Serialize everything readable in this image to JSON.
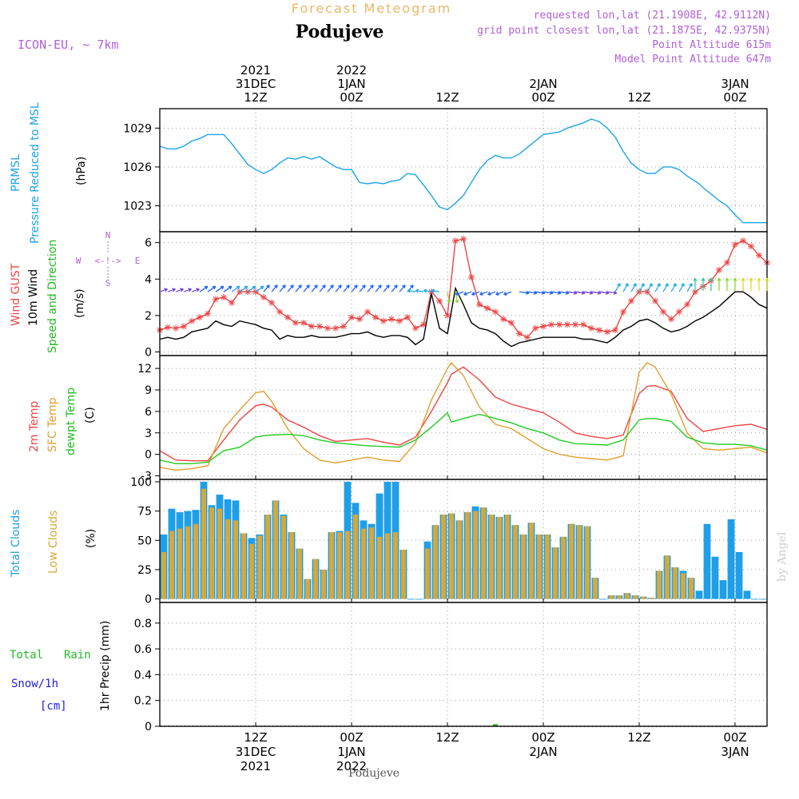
{
  "header": {
    "forecast_label": "Forecast Meteogram",
    "station": "Podujeve",
    "model": "ICON-EU, ~ 7km",
    "requested": "requested lon,lat (21.1908E, 42.9112N)",
    "grid_point": "grid point closest lon,lat (21.1875E, 42.9375N)",
    "point_alt": "Point Altitude 615m",
    "model_alt": "Model Point Altitude 647m",
    "footer_station": "Podujeve",
    "watermark": "by Angel"
  },
  "time_axis": {
    "top": [
      {
        "hour": 12,
        "lines": [
          "2021",
          "31DEC",
          "12Z"
        ]
      },
      {
        "hour": 24,
        "lines": [
          "2022",
          "1JAN",
          "00Z"
        ]
      },
      {
        "hour": 36,
        "lines": [
          "12Z"
        ]
      },
      {
        "hour": 48,
        "lines": [
          "2JAN",
          "00Z"
        ]
      },
      {
        "hour": 60,
        "lines": [
          "12Z"
        ]
      },
      {
        "hour": 72,
        "lines": [
          "3JAN",
          "00Z"
        ]
      }
    ],
    "bottom": [
      {
        "hour": 12,
        "lines": [
          "12Z",
          "31DEC",
          "2021"
        ]
      },
      {
        "hour": 24,
        "lines": [
          "00Z",
          "1JAN",
          "2022"
        ]
      },
      {
        "hour": 36,
        "lines": [
          "12Z"
        ]
      },
      {
        "hour": 48,
        "lines": [
          "00Z",
          "2JAN"
        ]
      },
      {
        "hour": 60,
        "lines": [
          "12Z"
        ]
      },
      {
        "hour": 72,
        "lines": [
          "00Z",
          "3JAN"
        ]
      }
    ]
  },
  "panels": {
    "pressure": {
      "labels": [
        "PRMSL",
        "Pressure Reduced to MSL",
        "(hPa)"
      ]
    },
    "wind": {
      "labels": [
        "Wind GUST",
        "10m Wind",
        "Speed and Direction",
        "(m/s)"
      ],
      "compass": {
        "n": "N",
        "s": "S",
        "w": "W",
        "e": "E",
        "arrows": "<-!->"
      }
    },
    "temp": {
      "labels": [
        "2m Temp",
        "SFC Temp",
        "dewpt Temp",
        "(C)"
      ]
    },
    "clouds": {
      "labels": [
        "Total Clouds",
        "Low Clouds",
        "(%)"
      ]
    },
    "precip": {
      "labels": [
        "Total",
        "Rain",
        "Snow/1h",
        "[cm]",
        "1hr Precip (mm)"
      ]
    }
  },
  "colors": {
    "pressure": "#1ba4e8",
    "gust": "#ee4444",
    "wind": "#000000",
    "temp": "#ee4444",
    "sfc": "#e0a030",
    "dew": "#22cc22",
    "total_cloud": "#1e9fe8",
    "low_cloud": "#d8a838",
    "precip": "#22aa22",
    "purple": "#b060d8",
    "orange_label": "#e8b868"
  },
  "chart_data": [
    {
      "type": "line",
      "title": "PRMSL Pressure Reduced to MSL",
      "ylabel": "(hPa)",
      "ylim": [
        1021,
        1030.5
      ],
      "yticks": [
        1023,
        1026,
        1029
      ],
      "xlim": [
        0,
        76
      ],
      "x": [
        0,
        1,
        2,
        3,
        4,
        5,
        6,
        7,
        8,
        9,
        10,
        11,
        12,
        13,
        14,
        15,
        16,
        17,
        18,
        19,
        20,
        21,
        22,
        23,
        24,
        25,
        26,
        27,
        28,
        29,
        30,
        31,
        32,
        33,
        34,
        35,
        36,
        37,
        38,
        39,
        40,
        41,
        42,
        43,
        44,
        45,
        46,
        47,
        48,
        49,
        50,
        51,
        52,
        53,
        54,
        55,
        56,
        57,
        58,
        59,
        60,
        61,
        62,
        63,
        64,
        65,
        66,
        67,
        67.5,
        68,
        69,
        70,
        71,
        72,
        73,
        74,
        75,
        76
      ],
      "series": [
        {
          "name": "PRMSL",
          "values": [
            1027.6,
            1027.4,
            1027.4,
            1027.6,
            1028.0,
            1028.2,
            1028.5,
            1028.5,
            1028.5,
            1027.8,
            1027.0,
            1026.2,
            1025.8,
            1025.5,
            1025.8,
            1026.3,
            1026.7,
            1026.6,
            1026.8,
            1026.6,
            1026.8,
            1026.4,
            1026.0,
            1025.8,
            1025.8,
            1024.8,
            1024.7,
            1024.8,
            1024.7,
            1024.9,
            1025.0,
            1025.5,
            1025.4,
            1024.6,
            1023.8,
            1022.9,
            1022.7,
            1023.2,
            1023.8,
            1024.8,
            1025.8,
            1026.5,
            1026.9,
            1026.7,
            1026.7,
            1027.0,
            1027.5,
            1028.0,
            1028.5,
            1028.6,
            1028.7,
            1029.0,
            1029.2,
            1029.4,
            1029.7,
            1029.5,
            1029.0,
            1028.3,
            1027.2,
            1026.3,
            1025.8,
            1025.5,
            1025.5,
            1026.0,
            1026.0,
            1025.8,
            1025.3,
            1024.9,
            1024.7,
            1024.4,
            1023.9,
            1023.4,
            1023.0,
            1022.3,
            1021.7,
            1021.7,
            1021.7,
            1021.7
          ]
        }
      ]
    },
    {
      "type": "line",
      "title": "Wind GUST / 10m Wind Speed and Direction",
      "ylabel": "(m/s)",
      "ylim": [
        -0.2,
        6.6
      ],
      "yticks": [
        0,
        2,
        4,
        6
      ],
      "xlim": [
        0,
        76
      ],
      "x": [
        0,
        1,
        2,
        3,
        4,
        5,
        6,
        7,
        8,
        9,
        10,
        11,
        12,
        13,
        14,
        15,
        16,
        17,
        18,
        19,
        20,
        21,
        22,
        23,
        24,
        25,
        26,
        27,
        28,
        29,
        30,
        31,
        32,
        33,
        34,
        35,
        36,
        37,
        38,
        39,
        40,
        41,
        42,
        43,
        44,
        45,
        46,
        47,
        48,
        49,
        50,
        51,
        52,
        53,
        54,
        55,
        56,
        57,
        58,
        59,
        60,
        61,
        62,
        63,
        64,
        65,
        66,
        67,
        68,
        69,
        70,
        71,
        72,
        73,
        74,
        75,
        76
      ],
      "series": [
        {
          "name": "Wind GUST",
          "values": [
            1.2,
            1.35,
            1.3,
            1.4,
            1.7,
            1.9,
            2.1,
            2.9,
            3.0,
            2.7,
            3.3,
            3.3,
            3.3,
            3.0,
            2.7,
            2.2,
            1.9,
            1.6,
            1.6,
            1.4,
            1.4,
            1.3,
            1.3,
            1.4,
            1.9,
            1.8,
            2.2,
            1.9,
            1.7,
            1.8,
            1.7,
            1.9,
            1.3,
            1.5,
            3.3,
            2.8,
            2.0,
            6.1,
            6.2,
            4.1,
            2.6,
            2.4,
            2.2,
            1.8,
            1.6,
            1.0,
            0.8,
            1.3,
            1.4,
            1.5,
            1.5,
            1.5,
            1.5,
            1.5,
            1.3,
            1.2,
            1.1,
            1.2,
            2.2,
            2.8,
            3.3,
            3.3,
            2.8,
            2.2,
            1.8,
            2.2,
            2.6,
            3.3,
            3.6,
            3.9,
            4.5,
            4.9,
            5.9,
            6.1,
            5.8,
            5.3,
            4.9
          ]
        },
        {
          "name": "10m Wind",
          "values": [
            0.7,
            0.8,
            0.7,
            0.8,
            1.1,
            1.2,
            1.3,
            1.7,
            1.5,
            1.4,
            1.7,
            1.6,
            1.5,
            1.3,
            1.2,
            0.7,
            0.9,
            0.8,
            0.8,
            0.9,
            0.8,
            0.8,
            0.8,
            0.9,
            1.0,
            1.0,
            1.1,
            0.9,
            0.8,
            0.9,
            0.9,
            0.8,
            0.4,
            0.7,
            3.2,
            1.3,
            1.0,
            3.5,
            2.6,
            1.6,
            1.3,
            1.2,
            1.0,
            0.6,
            0.3,
            0.5,
            0.6,
            0.7,
            0.8,
            0.8,
            0.8,
            0.8,
            0.8,
            0.7,
            0.7,
            0.6,
            0.5,
            0.8,
            1.2,
            1.4,
            1.7,
            1.8,
            1.6,
            1.3,
            1.1,
            1.2,
            1.4,
            1.7,
            1.9,
            2.2,
            2.5,
            2.9,
            3.3,
            3.3,
            3.0,
            2.6,
            2.4
          ]
        }
      ]
    },
    {
      "type": "line",
      "title": "2m Temp / SFC Temp / dewpt Temp",
      "ylabel": "(C)",
      "ylim": [
        -3.5,
        13.8
      ],
      "yticks": [
        -3,
        0,
        3,
        6,
        9,
        12
      ],
      "xlim": [
        0,
        76
      ],
      "x": [
        0,
        2,
        4,
        6,
        8,
        10,
        12,
        13,
        14,
        16,
        18,
        20,
        22,
        24,
        26,
        28,
        30,
        32,
        34,
        36,
        36.5,
        38,
        40,
        42,
        44,
        46,
        48,
        50,
        52,
        54,
        56,
        58,
        60,
        61,
        62,
        64,
        66,
        68,
        70,
        72,
        74,
        76
      ],
      "series": [
        {
          "name": "2m Temp",
          "values": [
            0.5,
            -0.8,
            -0.9,
            -0.9,
            2.0,
            4.8,
            6.8,
            7.0,
            6.6,
            4.8,
            3.8,
            2.6,
            1.8,
            2.0,
            2.2,
            1.7,
            1.3,
            2.4,
            6.0,
            10.0,
            11.2,
            12.2,
            10.4,
            8.0,
            7.0,
            6.4,
            5.8,
            4.5,
            3.0,
            2.5,
            2.2,
            2.7,
            8.5,
            9.5,
            9.6,
            8.8,
            5.0,
            3.2,
            3.6,
            4.0,
            4.2,
            3.5
          ]
        },
        {
          "name": "SFC Temp",
          "values": [
            -1.8,
            -2.2,
            -2.0,
            -1.6,
            3.6,
            6.2,
            8.6,
            8.8,
            7.4,
            3.6,
            0.8,
            -0.8,
            -1.2,
            -0.8,
            -0.4,
            -0.8,
            -1.0,
            1.6,
            7.6,
            12.0,
            12.8,
            11.0,
            6.6,
            4.2,
            3.6,
            2.2,
            0.8,
            0.0,
            -0.4,
            -0.6,
            -0.8,
            -0.2,
            11.5,
            12.8,
            12.2,
            8.4,
            3.0,
            0.8,
            0.6,
            0.8,
            1.0,
            0.2
          ]
        },
        {
          "name": "dewpt Temp",
          "values": [
            -0.8,
            -1.3,
            -1.3,
            -1.1,
            0.5,
            1.0,
            2.4,
            2.6,
            2.7,
            2.8,
            2.6,
            2.0,
            1.6,
            1.4,
            1.2,
            1.1,
            1.0,
            2.0,
            3.8,
            5.8,
            4.5,
            5.0,
            5.6,
            5.0,
            4.4,
            3.6,
            3.0,
            2.0,
            1.5,
            1.4,
            1.3,
            2.0,
            4.8,
            5.0,
            5.0,
            4.6,
            2.4,
            1.6,
            1.4,
            1.4,
            1.2,
            0.6
          ]
        }
      ]
    },
    {
      "type": "bar",
      "title": "Total Clouds / Low Clouds",
      "ylabel": "(%)",
      "ylim": [
        -3,
        102
      ],
      "yticks": [
        0,
        25,
        50,
        75,
        100
      ],
      "xlim": [
        0,
        76
      ],
      "categories": [
        "0",
        "1",
        "2",
        "3",
        "4",
        "5",
        "6",
        "7",
        "8",
        "9",
        "10",
        "11",
        "12",
        "13",
        "14",
        "15",
        "16",
        "17",
        "18",
        "19",
        "20",
        "21",
        "22",
        "23",
        "24",
        "25",
        "26",
        "27",
        "28",
        "29",
        "30",
        "31",
        "32",
        "33",
        "34",
        "35",
        "36",
        "37",
        "38",
        "39",
        "40",
        "41",
        "42",
        "43",
        "44",
        "45",
        "46",
        "47",
        "48",
        "49",
        "50",
        "51",
        "52",
        "53",
        "54",
        "55",
        "56",
        "57",
        "58",
        "59",
        "60",
        "61",
        "62",
        "63",
        "64",
        "65",
        "66",
        "67",
        "68",
        "69",
        "70",
        "71",
        "72",
        "73",
        "74",
        "75"
      ],
      "series": [
        {
          "name": "Total Clouds",
          "values": [
            55,
            77,
            74,
            75,
            76,
            100,
            80,
            89,
            85,
            84,
            56,
            52,
            55,
            72,
            84,
            72,
            57,
            43,
            17,
            34,
            25,
            57,
            58,
            100,
            82,
            67,
            64,
            90,
            100,
            100,
            42,
            0,
            0,
            49,
            63,
            72,
            73,
            67,
            74,
            79,
            78,
            72,
            70,
            72,
            63,
            55,
            65,
            55,
            55,
            44,
            53,
            64,
            63,
            62,
            18,
            0,
            3,
            3,
            5,
            3,
            2,
            1,
            24,
            37,
            27,
            24,
            18,
            7,
            64,
            36,
            16,
            68,
            40,
            7,
            0,
            0
          ]
        },
        {
          "name": "Low Clouds",
          "values": [
            40,
            58,
            60,
            62,
            64,
            94,
            78,
            77,
            68,
            67,
            56,
            47,
            54,
            72,
            84,
            71,
            57,
            43,
            17,
            34,
            25,
            57,
            57,
            58,
            72,
            60,
            61,
            53,
            56,
            57,
            42,
            0,
            0,
            43,
            63,
            72,
            73,
            67,
            74,
            75,
            78,
            72,
            70,
            72,
            63,
            55,
            65,
            55,
            55,
            44,
            53,
            64,
            63,
            62,
            18,
            0,
            3,
            3,
            5,
            3,
            2,
            1,
            24,
            37,
            27,
            22,
            18,
            0,
            0,
            0,
            0,
            0,
            0,
            0,
            0,
            0
          ]
        }
      ]
    },
    {
      "type": "bar",
      "title": "1hr Precip",
      "ylabel": "1hr Precip (mm)",
      "ylim": [
        0,
        0.96
      ],
      "yticks": [
        0,
        0.2,
        0.4,
        0.6,
        0.8
      ],
      "xlim": [
        0,
        76
      ],
      "categories": [
        "42"
      ],
      "series": [
        {
          "name": "Total Rain",
          "values": [
            0.01
          ]
        }
      ]
    }
  ]
}
